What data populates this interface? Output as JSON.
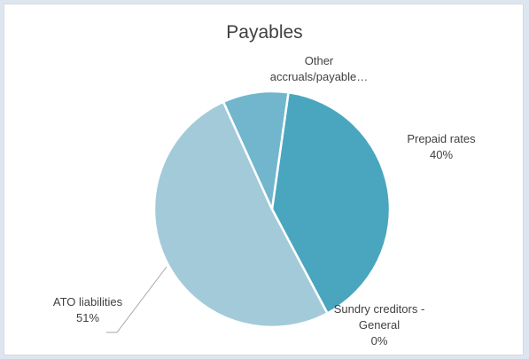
{
  "chart_data": {
    "type": "pie",
    "title": "Payables",
    "slices": [
      {
        "label": "Prepaid rates",
        "percent_label": "40%",
        "value": 40,
        "color": "#4aa6bf"
      },
      {
        "label": "Sundry creditors - General",
        "percent_label": "0%",
        "value": 0,
        "color": "#5bb0c8"
      },
      {
        "label": "ATO liabilities",
        "percent_label": "51%",
        "value": 51,
        "color": "#a3cad9"
      },
      {
        "label": "Other accruals/payable…",
        "percent_label": "",
        "value": 9,
        "color": "#71b6cd"
      }
    ],
    "legend": "none"
  }
}
